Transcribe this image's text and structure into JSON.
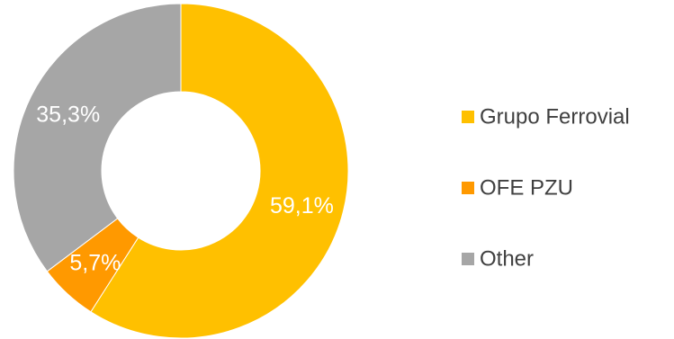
{
  "chart_data": {
    "type": "pie",
    "variant": "donut",
    "title": "",
    "legend_position": "right",
    "series": [
      {
        "name": "Grupo Ferrovial",
        "legend_label": "Grupo Ferrovial",
        "value": 59.1,
        "label": "59,1%",
        "color": "#FFC000"
      },
      {
        "name": "OFE PZU",
        "legend_label": " OFE PZU",
        "value": 5.7,
        "label": "5,7%",
        "color": "#FF9900"
      },
      {
        "name": "Other",
        "legend_label": "Other",
        "value": 35.3,
        "label": "35,3%",
        "color": "#A6A6A6"
      }
    ]
  }
}
